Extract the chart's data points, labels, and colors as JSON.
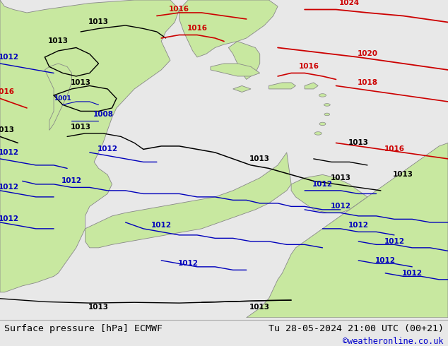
{
  "bg_color": "#e8e8e8",
  "ocean_color": "#d8d8d8",
  "land_color": "#c8e8a0",
  "land_edge_color": "#888888",
  "label_left": "Surface pressure [hPa] ECMWF",
  "label_right": "Tu 28-05-2024 21:00 UTC (00+21)",
  "label_credit": "©weatheronline.co.uk",
  "label_left_color": "#000000",
  "label_right_color": "#000000",
  "label_credit_color": "#0000cc",
  "font_size_labels": 9.5,
  "font_size_credit": 8.5,
  "font_size_isobar": 7.5
}
